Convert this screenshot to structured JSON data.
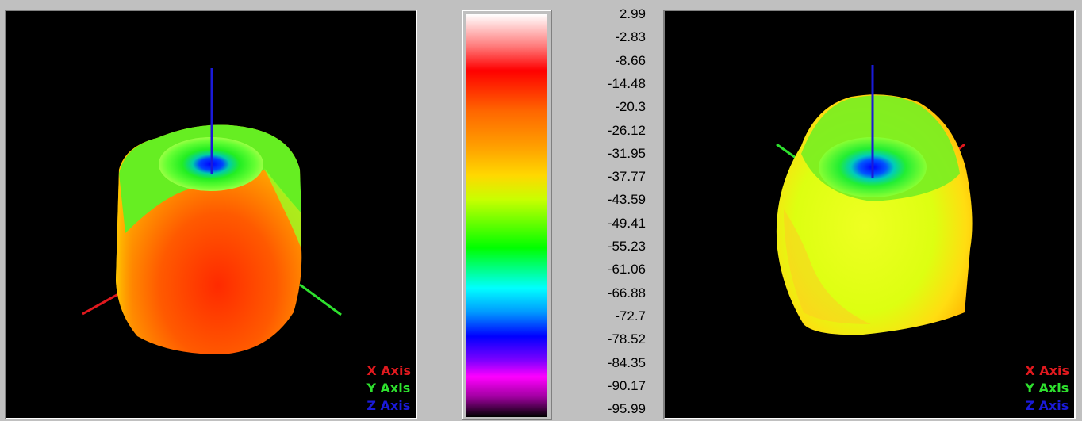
{
  "viewports": [
    {
      "name": "left",
      "legend": {
        "x": "X Axis",
        "y": "Y Axis",
        "z": "Z Axis"
      }
    },
    {
      "name": "right",
      "legend": {
        "x": "X Axis",
        "y": "Y Axis",
        "z": "Z Axis"
      }
    }
  ],
  "colors": {
    "x_axis": "#e0191e",
    "y_axis": "#2ee02e",
    "z_axis": "#1a1ad8",
    "background": "#000000",
    "window": "#c0c0c0"
  },
  "colorbar": {
    "ticks": [
      "2.99",
      "-2.83",
      "-8.66",
      "-14.48",
      "-20.3",
      "-26.12",
      "-31.95",
      "-37.77",
      "-43.59",
      "-49.41",
      "-55.23",
      "-61.06",
      "-66.88",
      "-72.7",
      "-78.52",
      "-84.35",
      "-90.17",
      "-95.99"
    ]
  }
}
